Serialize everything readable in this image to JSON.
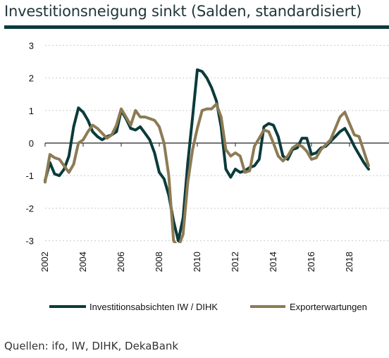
{
  "title": "Investitionsneigung sinkt (Salden, standardisiert)",
  "source": "Quellen: ifo, IW, DIHK, DekaBank",
  "colors": {
    "rule": "#0b3b3b",
    "grid": "#cccccc"
  },
  "chart_data": {
    "type": "line",
    "title": "Investitionsneigung sinkt (Salden, standardisiert)",
    "xlabel": "",
    "ylabel": "",
    "xlim": [
      2002,
      2019.3
    ],
    "ylim": [
      -3,
      3
    ],
    "yticks": [
      3,
      2,
      1,
      0,
      -1,
      -2,
      -3
    ],
    "xticks": [
      2002,
      2004,
      2006,
      2008,
      2010,
      2012,
      2014,
      2016,
      2018
    ],
    "grid": "horizontal dashed",
    "legend_position": "bottom",
    "series": [
      {
        "name": "Investitionsabsichten IW / DIHK",
        "color": "#0b3b3b",
        "x": [
          2002.0,
          2002.25,
          2002.5,
          2002.75,
          2003.0,
          2003.25,
          2003.5,
          2003.75,
          2004.0,
          2004.25,
          2004.5,
          2004.75,
          2005.0,
          2005.25,
          2005.5,
          2005.75,
          2006.0,
          2006.25,
          2006.5,
          2006.75,
          2007.0,
          2007.25,
          2007.5,
          2007.75,
          2008.0,
          2008.25,
          2008.5,
          2008.75,
          2009.0,
          2009.25,
          2009.5,
          2009.75,
          2010.0,
          2010.25,
          2010.5,
          2010.75,
          2011.0,
          2011.25,
          2011.5,
          2011.75,
          2012.0,
          2012.25,
          2012.5,
          2012.75,
          2013.0,
          2013.25,
          2013.5,
          2013.75,
          2014.0,
          2014.25,
          2014.5,
          2014.75,
          2015.0,
          2015.25,
          2015.5,
          2015.75,
          2016.0,
          2016.25,
          2016.5,
          2016.75,
          2017.0,
          2017.25,
          2017.5,
          2017.75,
          2018.0,
          2018.25,
          2018.5,
          2018.75,
          2019.0
        ],
        "y": [
          -1.15,
          -0.6,
          -0.95,
          -1.0,
          -0.8,
          -0.4,
          0.5,
          1.08,
          0.95,
          0.7,
          0.35,
          0.2,
          0.1,
          0.2,
          0.25,
          0.35,
          1.0,
          0.75,
          0.45,
          0.4,
          0.5,
          0.3,
          0.1,
          -0.3,
          -0.9,
          -1.1,
          -1.6,
          -2.4,
          -3.0,
          -2.3,
          -0.6,
          0.8,
          2.25,
          2.2,
          2.0,
          1.7,
          1.3,
          0.5,
          -0.8,
          -1.05,
          -0.8,
          -0.9,
          -0.85,
          -0.75,
          -0.7,
          -0.5,
          0.5,
          0.6,
          0.55,
          0.2,
          -0.4,
          -0.5,
          -0.2,
          -0.15,
          0.15,
          0.15,
          -0.35,
          -0.3,
          -0.15,
          -0.1,
          0.05,
          0.2,
          0.35,
          0.45,
          0.2,
          -0.1,
          -0.35,
          -0.6,
          -0.8
        ]
      },
      {
        "name": "Exporterwartungen",
        "color": "#8c7b54",
        "x": [
          2002.0,
          2002.25,
          2002.5,
          2002.75,
          2003.0,
          2003.25,
          2003.5,
          2003.75,
          2004.0,
          2004.25,
          2004.5,
          2004.75,
          2005.0,
          2005.25,
          2005.5,
          2005.75,
          2006.0,
          2006.25,
          2006.5,
          2006.75,
          2007.0,
          2007.25,
          2007.5,
          2007.75,
          2008.0,
          2008.25,
          2008.5,
          2008.75,
          2009.0,
          2009.25,
          2009.5,
          2009.75,
          2010.0,
          2010.25,
          2010.5,
          2010.75,
          2011.0,
          2011.25,
          2011.5,
          2011.75,
          2012.0,
          2012.25,
          2012.5,
          2012.75,
          2013.0,
          2013.25,
          2013.5,
          2013.75,
          2014.0,
          2014.25,
          2014.5,
          2014.75,
          2015.0,
          2015.25,
          2015.5,
          2015.75,
          2016.0,
          2016.25,
          2016.5,
          2016.75,
          2017.0,
          2017.25,
          2017.5,
          2017.75,
          2018.0,
          2018.25,
          2018.5,
          2018.75,
          2019.0
        ],
        "y": [
          -1.2,
          -0.35,
          -0.45,
          -0.5,
          -0.7,
          -0.9,
          -0.65,
          0.0,
          0.1,
          0.35,
          0.55,
          0.45,
          0.3,
          0.15,
          0.25,
          0.55,
          1.05,
          0.8,
          0.55,
          1.0,
          0.8,
          0.8,
          0.75,
          0.7,
          0.5,
          0.0,
          -1.0,
          -3.0,
          -3.2,
          -2.8,
          -1.2,
          -0.2,
          0.45,
          1.0,
          1.05,
          1.05,
          1.2,
          0.8,
          -0.2,
          -0.4,
          -0.3,
          -0.4,
          -0.9,
          -0.85,
          -0.1,
          0.15,
          0.4,
          0.35,
          0.0,
          -0.4,
          -0.55,
          -0.4,
          -0.15,
          -0.05,
          -0.1,
          -0.25,
          -0.5,
          -0.45,
          -0.2,
          -0.05,
          0.1,
          0.45,
          0.8,
          0.95,
          0.6,
          0.25,
          0.2,
          -0.25,
          -0.7
        ]
      }
    ]
  }
}
